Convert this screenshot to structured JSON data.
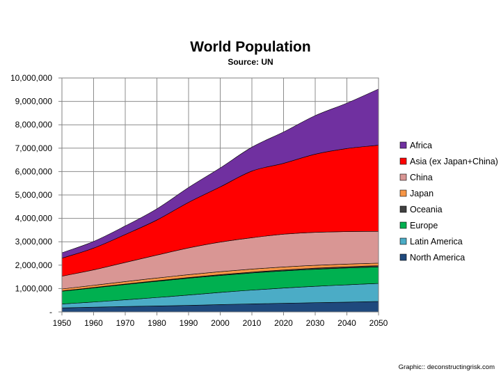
{
  "chart_data": {
    "type": "area",
    "stacked": true,
    "title": "World Population",
    "subtitle": "Source: UN",
    "xlabel": "",
    "ylabel": "",
    "x": [
      1950,
      1960,
      1970,
      1980,
      1990,
      2000,
      2010,
      2020,
      2030,
      2040,
      2050
    ],
    "xlim": [
      1950,
      2050
    ],
    "ylim": [
      0,
      10000000
    ],
    "x_tick_labels": [
      "1950",
      "1960",
      "1970",
      "1980",
      "1990",
      "2000",
      "2010",
      "2020",
      "2030",
      "2040",
      "2050"
    ],
    "y_tick_labels": [
      "-",
      "1,000,000",
      "2,000,000",
      "3,000,000",
      "4,000,000",
      "5,000,000",
      "6,000,000",
      "7,000,000",
      "8,000,000",
      "9,000,000",
      "10,000,000"
    ],
    "grid": true,
    "legend_position": "right",
    "series": [
      {
        "name": "North America",
        "color": "#1f497d",
        "values": [
          172000,
          204000,
          232000,
          256000,
          280000,
          315000,
          344000,
          370000,
          396000,
          420000,
          448000
        ]
      },
      {
        "name": "Latin America",
        "color": "#4bacc6",
        "values": [
          167000,
          220000,
          286000,
          362000,
          443000,
          521000,
          590000,
          650000,
          700000,
          740000,
          770000
        ]
      },
      {
        "name": "Europe",
        "color": "#00b050",
        "values": [
          547000,
          604000,
          656000,
          692000,
          721000,
          726000,
          733000,
          735000,
          730000,
          720000,
          706000
        ]
      },
      {
        "name": "Oceania",
        "color": "#404040",
        "values": [
          13000,
          16000,
          20000,
          23000,
          27000,
          31000,
          37000,
          42000,
          47000,
          51000,
          55000
        ]
      },
      {
        "name": "Japan",
        "color": "#f79646",
        "values": [
          83000,
          94000,
          104000,
          117000,
          124000,
          127000,
          128000,
          126000,
          120000,
          114000,
          108000
        ]
      },
      {
        "name": "China",
        "color": "#d99694",
        "values": [
          545000,
          660000,
          818000,
          980000,
          1140000,
          1265000,
          1340000,
          1400000,
          1410000,
          1390000,
          1360000
        ]
      },
      {
        "name": "Asia (ex Japan+China)",
        "color": "#ff0000",
        "values": [
          770000,
          930000,
          1195000,
          1500000,
          1950000,
          2360000,
          2850000,
          3030000,
          3340000,
          3550000,
          3680000
        ]
      },
      {
        "name": "Africa",
        "color": "#7030a0",
        "values": [
          230000,
          285000,
          366000,
          480000,
          635000,
          811000,
          1022000,
          1340000,
          1650000,
          1940000,
          2400000
        ]
      }
    ]
  },
  "credit": "Graphic:: deconstructingrisk.com"
}
